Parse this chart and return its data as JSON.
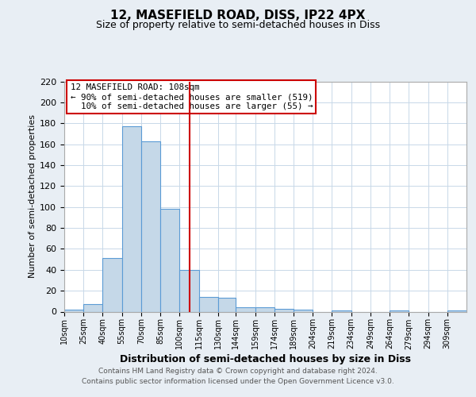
{
  "title": "12, MASEFIELD ROAD, DISS, IP22 4PX",
  "subtitle": "Size of property relative to semi-detached houses in Diss",
  "xlabel": "Distribution of semi-detached houses by size in Diss",
  "ylabel": "Number of semi-detached properties",
  "bin_labels": [
    "10sqm",
    "25sqm",
    "40sqm",
    "55sqm",
    "70sqm",
    "85sqm",
    "100sqm",
    "115sqm",
    "130sqm",
    "144sqm",
    "159sqm",
    "174sqm",
    "189sqm",
    "204sqm",
    "219sqm",
    "234sqm",
    "249sqm",
    "264sqm",
    "279sqm",
    "294sqm",
    "309sqm"
  ],
  "bar_heights": [
    2,
    7,
    51,
    177,
    163,
    98,
    40,
    14,
    13,
    4,
    4,
    3,
    2,
    0,
    1,
    0,
    0,
    1,
    0,
    0,
    1
  ],
  "bar_color": "#c5d8e8",
  "bar_edge_color": "#5b9bd5",
  "property_label": "12 MASEFIELD ROAD: 108sqm",
  "pct_smaller": 90,
  "n_smaller": 519,
  "pct_larger": 10,
  "n_larger": 55,
  "vline_x": 108,
  "vline_color": "#cc0000",
  "ylim": [
    0,
    220
  ],
  "yticks": [
    0,
    20,
    40,
    60,
    80,
    100,
    120,
    140,
    160,
    180,
    200,
    220
  ],
  "bin_edges": [
    10,
    25,
    40,
    55,
    70,
    85,
    100,
    115,
    130,
    144,
    159,
    174,
    189,
    204,
    219,
    234,
    249,
    264,
    279,
    294,
    309,
    324
  ],
  "footnote1": "Contains HM Land Registry data © Crown copyright and database right 2024.",
  "footnote2": "Contains public sector information licensed under the Open Government Licence v3.0.",
  "background_color": "#e8eef4",
  "plot_bg_color": "#ffffff",
  "grid_color": "#c8d8e8",
  "annotation_box_color": "#ffffff",
  "annotation_box_edge": "#cc0000",
  "title_fontsize": 11,
  "subtitle_fontsize": 9,
  "xlabel_fontsize": 9,
  "ylabel_fontsize": 8,
  "tick_fontsize": 8,
  "xtick_fontsize": 7,
  "footnote_fontsize": 6.5
}
